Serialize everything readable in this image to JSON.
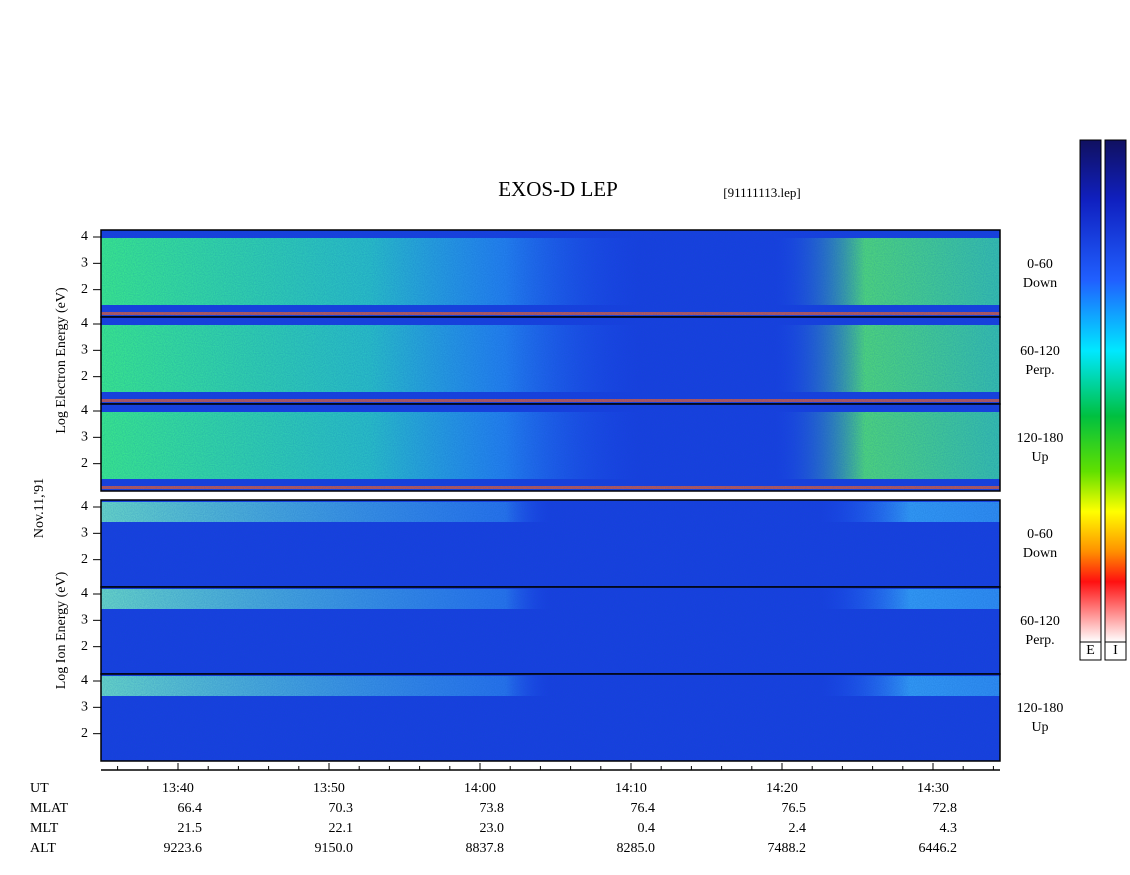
{
  "title": "EXOS-D LEP",
  "file": "[91111113.lep]",
  "date": "Nov.11,'91",
  "groups": [
    {
      "ylabel": "Log  Electron  Energy (eV)",
      "panels": [
        {
          "angle": "0-60",
          "dir": "Down"
        },
        {
          "angle": "60-120",
          "dir": "Perp."
        },
        {
          "angle": "120-180",
          "dir": "Up"
        }
      ]
    },
    {
      "ylabel": "Log  Ion  Energy (eV)",
      "panels": [
        {
          "angle": "0-60",
          "dir": "Down"
        },
        {
          "angle": "60-120",
          "dir": "Perp."
        },
        {
          "angle": "120-180",
          "dir": "Up"
        }
      ]
    }
  ],
  "yticks": [
    2,
    3,
    4
  ],
  "orbit": {
    "rows": [
      {
        "label": "UT",
        "values": [
          "13:40",
          "13:50",
          "14:00",
          "14:10",
          "14:20",
          "14:30"
        ]
      },
      {
        "label": "MLAT",
        "values": [
          "66.4",
          "70.3",
          "73.8",
          "76.4",
          "76.5",
          "72.8"
        ]
      },
      {
        "label": "MLT",
        "values": [
          "21.5",
          "22.1",
          "23.0",
          "0.4",
          "2.4",
          "4.3"
        ]
      },
      {
        "label": "ALT",
        "values": [
          "9223.6",
          "9150.0",
          "8837.8",
          "8285.0",
          "7488.2",
          "6446.2"
        ]
      }
    ]
  },
  "colorbars": [
    "E",
    "I"
  ]
}
